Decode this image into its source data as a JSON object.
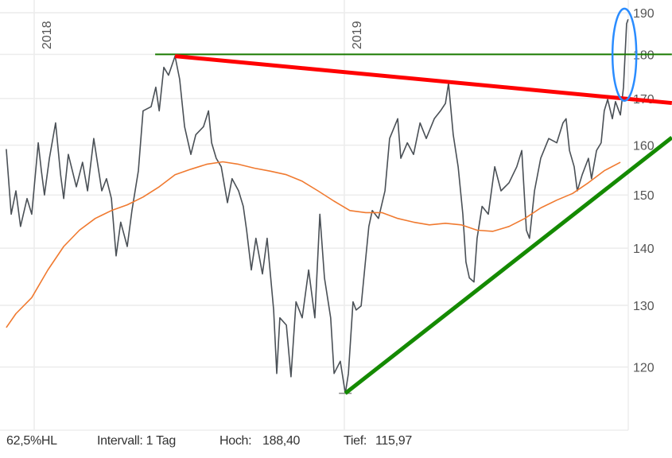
{
  "chart_data": {
    "type": "line",
    "title": "",
    "xlabel": "",
    "ylabel": "",
    "y_scale": "log",
    "ylim": [
      112,
      192
    ],
    "y_ticks": [
      120,
      130,
      140,
      150,
      160,
      170,
      180,
      190
    ],
    "x_ticks": [
      {
        "value": 2018,
        "label": "2018"
      },
      {
        "value": 2019,
        "label": "2019"
      }
    ],
    "xlim": [
      2017.9,
      2019.915
    ],
    "grid": true,
    "series": [
      {
        "role": "price",
        "color": "#4a5056",
        "x": [
          2017.91,
          2017.926,
          2017.941,
          2017.956,
          2017.977,
          2017.992,
          2018.013,
          2018.023,
          2018.033,
          2018.049,
          2018.069,
          2018.085,
          2018.095,
          2018.11,
          2018.136,
          2018.156,
          2018.172,
          2018.192,
          2018.208,
          2018.218,
          2018.233,
          2018.249,
          2018.264,
          2018.279,
          2018.3,
          2018.315,
          2018.336,
          2018.351,
          2018.377,
          2018.392,
          2018.403,
          2018.418,
          2018.433,
          2018.454,
          2018.469,
          2018.485,
          2018.505,
          2018.521,
          2018.546,
          2018.562,
          2018.572,
          2018.587,
          2018.603,
          2018.623,
          2018.638,
          2018.659,
          2018.674,
          2018.685,
          2018.7,
          2018.715,
          2018.736,
          2018.751,
          2018.772,
          2018.782,
          2018.792,
          2018.813,
          2018.828,
          2018.844,
          2018.864,
          2018.885,
          2018.905,
          2018.921,
          2018.936,
          2018.956,
          2018.967,
          2018.987,
          2019.003,
          2019.013,
          2019.028,
          2019.038,
          2019.054,
          2019.069,
          2019.079,
          2019.09,
          2019.11,
          2019.131,
          2019.146,
          2019.172,
          2019.182,
          2019.203,
          2019.223,
          2019.244,
          2019.264,
          2019.29,
          2019.31,
          2019.326,
          2019.336,
          2019.351,
          2019.367,
          2019.382,
          2019.392,
          2019.403,
          2019.418,
          2019.428,
          2019.444,
          2019.464,
          2019.485,
          2019.505,
          2019.531,
          2019.556,
          2019.572,
          2019.587,
          2019.597,
          2019.613,
          2019.633,
          2019.659,
          2019.685,
          2019.705,
          2019.715,
          2019.726,
          2019.741,
          2019.751,
          2019.767,
          2019.787,
          2019.797,
          2019.813,
          2019.828,
          2019.838,
          2019.849,
          2019.864,
          2019.874,
          2019.89,
          2019.9,
          2019.91,
          2019.915
        ],
        "y": [
          159.2,
          146.3,
          150.8,
          144.0,
          149.3,
          146.3,
          160.5,
          154.8,
          150.0,
          157.3,
          164.7,
          154.0,
          149.3,
          158.1,
          151.6,
          156.5,
          150.8,
          161.4,
          154.8,
          150.8,
          153.2,
          149.3,
          138.6,
          144.8,
          140.3,
          147.0,
          154.8,
          167.3,
          168.2,
          172.5,
          167.3,
          177.0,
          175.2,
          179.6,
          174.3,
          163.9,
          158.1,
          162.2,
          163.9,
          167.3,
          160.5,
          157.3,
          155.6,
          148.5,
          153.2,
          150.8,
          147.8,
          143.3,
          136.1,
          141.8,
          135.4,
          141.8,
          129.2,
          119.0,
          127.9,
          126.7,
          118.5,
          130.6,
          127.9,
          136.1,
          127.9,
          146.3,
          134.7,
          127.9,
          119.0,
          120.9,
          115.97,
          119.0,
          130.6,
          129.2,
          129.9,
          138.2,
          144.0,
          147.0,
          145.5,
          150.8,
          161.4,
          165.6,
          157.3,
          160.5,
          158.1,
          164.7,
          161.4,
          165.6,
          167.3,
          168.9,
          173.4,
          162.2,
          155.6,
          146.3,
          137.5,
          134.7,
          134.0,
          141.8,
          147.8,
          146.3,
          155.6,
          150.8,
          152.4,
          155.6,
          158.9,
          143.3,
          141.8,
          150.8,
          157.3,
          161.4,
          160.5,
          164.7,
          165.6,
          158.9,
          155.6,
          150.8,
          154.0,
          157.3,
          153.2,
          158.9,
          160.5,
          167.3,
          169.8,
          165.6,
          169.3,
          166.4,
          172.5,
          187.3,
          188.4
        ]
      },
      {
        "role": "moving-average",
        "color": "#f07a30",
        "x": [
          2017.91,
          2017.941,
          2017.992,
          2018.044,
          2018.095,
          2018.146,
          2018.197,
          2018.249,
          2018.3,
          2018.351,
          2018.403,
          2018.454,
          2018.505,
          2018.556,
          2018.608,
          2018.659,
          2018.71,
          2018.762,
          2018.813,
          2018.864,
          2018.915,
          2018.967,
          2019.018,
          2019.069,
          2019.121,
          2019.172,
          2019.223,
          2019.274,
          2019.326,
          2019.377,
          2019.428,
          2019.479,
          2019.531,
          2019.582,
          2019.633,
          2019.685,
          2019.736,
          2019.787,
          2019.838,
          2019.89
        ],
        "y": [
          126.3,
          128.6,
          131.3,
          136.1,
          140.3,
          143.3,
          145.5,
          147.0,
          148.1,
          149.6,
          151.6,
          154.0,
          155.1,
          156.1,
          156.6,
          156.1,
          155.3,
          154.7,
          154.0,
          152.7,
          150.8,
          148.8,
          147.0,
          146.6,
          146.6,
          145.5,
          144.8,
          144.3,
          144.6,
          144.3,
          143.3,
          143.1,
          144.0,
          145.5,
          147.5,
          149.0,
          150.3,
          152.4,
          154.8,
          156.5
        ]
      }
    ],
    "annotations": [
      {
        "role": "resistance-horizontal",
        "color": "#1a7a00",
        "x": [
          2018.39,
          2020.056
        ],
        "y": [
          180,
          180
        ]
      },
      {
        "role": "resistance-trendline",
        "color": "#ff0000",
        "x": [
          2018.454,
          2020.056
        ],
        "y": [
          179.6,
          169.0
        ]
      },
      {
        "role": "support-trendline",
        "color": "#148a00",
        "x": [
          2019.003,
          2020.056
        ],
        "y": [
          115.97,
          161.6
        ]
      },
      {
        "role": "highlight-ellipse",
        "color": "#2a8cff",
        "x_center": 2019.903,
        "y_range": [
          169.5,
          191
        ]
      }
    ],
    "low_marker": {
      "x": 2019.003,
      "y": 115.97
    }
  },
  "footer": {
    "scale": "62,5%HL",
    "interval": "Intervall: 1 Tag",
    "high_label": "Hoch:",
    "high_value": "188,40",
    "low_label": "Tief:",
    "low_value": "115,97"
  }
}
